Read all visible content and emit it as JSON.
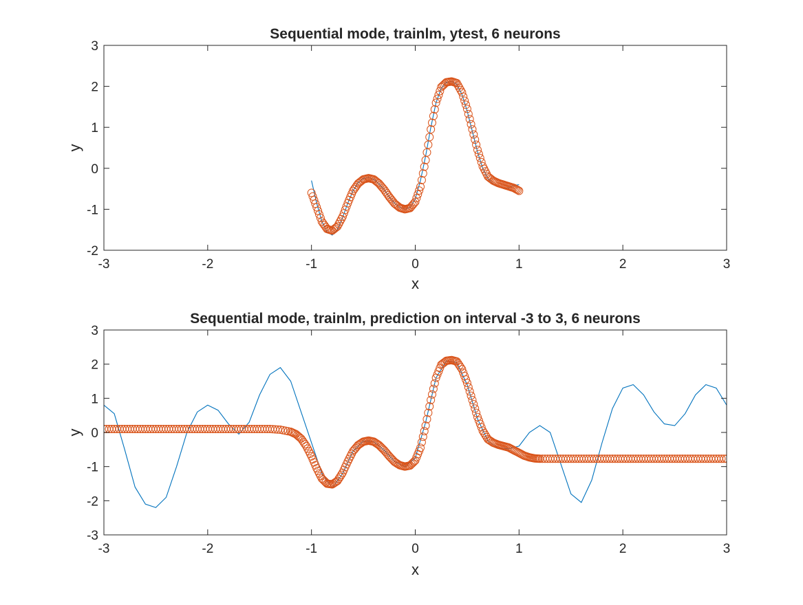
{
  "colors": {
    "target_line": "#0072BD",
    "prediction_marker": "#D95319",
    "axes": "#262626",
    "background": "#ffffff"
  },
  "chart_data": [
    {
      "type": "line",
      "title": "Sequential mode, trainlm, ytest, 6 neurons",
      "xlabel": "x",
      "ylabel": "y",
      "xlim": [
        -3,
        3
      ],
      "ylim": [
        -2,
        3
      ],
      "xticks": [
        -3,
        -2,
        -1,
        0,
        1,
        2,
        3
      ],
      "yticks": [
        -2,
        -1,
        0,
        1,
        2,
        3
      ],
      "xtick_labels": [
        "-3",
        "-2",
        "-1",
        "0",
        "1",
        "2",
        "3"
      ],
      "ytick_labels": [
        "-2",
        "-1",
        "0",
        "1",
        "2",
        "3"
      ],
      "grid": false,
      "box": true,
      "series": [
        {
          "kind": "line",
          "color": "#0072BD",
          "x": [
            -1,
            -0.95,
            -0.9,
            -0.85,
            -0.8,
            -0.75,
            -0.7,
            -0.65,
            -0.6,
            -0.55,
            -0.5,
            -0.45,
            -0.4,
            -0.35,
            -0.3,
            -0.25,
            -0.2,
            -0.15,
            -0.1,
            -0.05,
            0,
            0.05,
            0.1,
            0.15,
            0.2,
            0.25,
            0.3,
            0.35,
            0.4,
            0.45,
            0.5,
            0.55,
            0.6,
            0.65,
            0.7,
            0.75,
            0.8,
            0.85,
            0.9,
            0.95,
            1
          ],
          "y": [
            -0.3,
            -0.85,
            -1.3,
            -1.55,
            -1.63,
            -1.5,
            -1.2,
            -0.85,
            -0.55,
            -0.35,
            -0.25,
            -0.22,
            -0.27,
            -0.38,
            -0.52,
            -0.7,
            -0.85,
            -0.95,
            -1.0,
            -0.95,
            -0.75,
            -0.3,
            0.3,
            1.0,
            1.6,
            1.95,
            2.1,
            2.12,
            2.05,
            1.8,
            1.4,
            0.9,
            0.4,
            0.0,
            -0.25,
            -0.38,
            -0.45,
            -0.48,
            -0.48,
            -0.42,
            -0.4
          ]
        },
        {
          "kind": "marker",
          "marker": "circle",
          "color": "#D95319",
          "x": [
            -1,
            -0.95,
            -0.9,
            -0.85,
            -0.8,
            -0.75,
            -0.7,
            -0.65,
            -0.6,
            -0.55,
            -0.5,
            -0.45,
            -0.4,
            -0.35,
            -0.3,
            -0.25,
            -0.2,
            -0.15,
            -0.1,
            -0.05,
            0,
            0.05,
            0.1,
            0.15,
            0.2,
            0.25,
            0.3,
            0.35,
            0.4,
            0.45,
            0.5,
            0.55,
            0.6,
            0.65,
            0.7,
            0.75,
            0.8,
            0.85,
            0.9,
            0.95,
            1
          ],
          "y": [
            -0.6,
            -0.95,
            -1.3,
            -1.48,
            -1.52,
            -1.42,
            -1.18,
            -0.85,
            -0.55,
            -0.37,
            -0.27,
            -0.24,
            -0.27,
            -0.37,
            -0.52,
            -0.7,
            -0.86,
            -0.96,
            -1.0,
            -0.97,
            -0.82,
            -0.45,
            0.2,
            0.95,
            1.6,
            1.98,
            2.1,
            2.12,
            2.08,
            1.85,
            1.45,
            0.95,
            0.45,
            0.05,
            -0.2,
            -0.3,
            -0.36,
            -0.4,
            -0.44,
            -0.48,
            -0.55
          ]
        }
      ]
    },
    {
      "type": "line",
      "title": "Sequential mode, trainlm, prediction on interval -3 to 3, 6 neurons",
      "xlabel": "x",
      "ylabel": "y",
      "xlim": [
        -3,
        3
      ],
      "ylim": [
        -3,
        3
      ],
      "xticks": [
        -3,
        -2,
        -1,
        0,
        1,
        2,
        3
      ],
      "yticks": [
        -3,
        -2,
        -1,
        0,
        1,
        2,
        3
      ],
      "xtick_labels": [
        "-3",
        "-2",
        "-1",
        "0",
        "1",
        "2",
        "3"
      ],
      "ytick_labels": [
        "-3",
        "-2",
        "-1",
        "0",
        "1",
        "2",
        "3"
      ],
      "grid": false,
      "box": true,
      "series": [
        {
          "kind": "line",
          "color": "#0072BD",
          "x": [
            -3,
            -2.9,
            -2.8,
            -2.7,
            -2.6,
            -2.5,
            -2.4,
            -2.3,
            -2.2,
            -2.1,
            -2,
            -1.9,
            -1.8,
            -1.7,
            -1.6,
            -1.5,
            -1.4,
            -1.3,
            -1.2,
            -1.1,
            -1,
            -0.9,
            -0.8,
            -0.7,
            -0.6,
            -0.5,
            -0.4,
            -0.3,
            -0.2,
            -0.1,
            0,
            0.1,
            0.2,
            0.3,
            0.4,
            0.5,
            0.6,
            0.7,
            0.8,
            0.9,
            1,
            1.1,
            1.2,
            1.3,
            1.4,
            1.5,
            1.6,
            1.7,
            1.8,
            1.9,
            2,
            2.1,
            2.2,
            2.3,
            2.4,
            2.5,
            2.6,
            2.7,
            2.8,
            2.9,
            3
          ],
          "y": [
            0.8,
            0.55,
            -0.5,
            -1.6,
            -2.1,
            -2.2,
            -1.9,
            -1.0,
            0.0,
            0.6,
            0.8,
            0.65,
            0.25,
            -0.05,
            0.3,
            1.1,
            1.7,
            1.9,
            1.5,
            0.6,
            -0.3,
            -1.2,
            -1.63,
            -1.2,
            -0.55,
            -0.25,
            -0.27,
            -0.52,
            -0.85,
            -1.0,
            -0.75,
            0.3,
            1.6,
            2.1,
            2.05,
            1.4,
            0.4,
            -0.25,
            -0.45,
            -0.48,
            -0.4,
            0.0,
            0.2,
            0.0,
            -0.9,
            -1.8,
            -2.05,
            -1.4,
            -0.3,
            0.7,
            1.3,
            1.4,
            1.1,
            0.6,
            0.25,
            0.2,
            0.55,
            1.1,
            1.4,
            1.3,
            0.8
          ]
        },
        {
          "kind": "marker",
          "marker": "circle",
          "color": "#D95319",
          "x": [
            -3,
            -2.9,
            -2.8,
            -2.7,
            -2.6,
            -2.5,
            -2.4,
            -2.3,
            -2.2,
            -2.1,
            -2,
            -1.9,
            -1.8,
            -1.7,
            -1.6,
            -1.5,
            -1.4,
            -1.3,
            -1.2,
            -1.15,
            -1.1,
            -1.05,
            -1,
            -0.95,
            -0.9,
            -0.85,
            -0.8,
            -0.75,
            -0.7,
            -0.65,
            -0.6,
            -0.55,
            -0.5,
            -0.45,
            -0.4,
            -0.35,
            -0.3,
            -0.25,
            -0.2,
            -0.15,
            -0.1,
            -0.05,
            0,
            0.05,
            0.1,
            0.15,
            0.2,
            0.25,
            0.3,
            0.35,
            0.4,
            0.45,
            0.5,
            0.55,
            0.6,
            0.65,
            0.7,
            0.75,
            0.8,
            0.85,
            0.9,
            0.95,
            1,
            1.05,
            1.1,
            1.15,
            1.2,
            1.3,
            1.4,
            1.5,
            1.6,
            1.7,
            1.8,
            1.9,
            2,
            2.1,
            2.2,
            2.3,
            2.4,
            2.5,
            2.6,
            2.7,
            2.8,
            2.9,
            3
          ],
          "y": [
            0.1,
            0.1,
            0.1,
            0.1,
            0.1,
            0.1,
            0.1,
            0.1,
            0.1,
            0.1,
            0.1,
            0.1,
            0.1,
            0.1,
            0.1,
            0.1,
            0.1,
            0.08,
            0.02,
            -0.05,
            -0.18,
            -0.4,
            -0.7,
            -1.05,
            -1.35,
            -1.5,
            -1.52,
            -1.42,
            -1.18,
            -0.85,
            -0.55,
            -0.37,
            -0.27,
            -0.24,
            -0.27,
            -0.37,
            -0.52,
            -0.7,
            -0.86,
            -0.96,
            -1.0,
            -0.97,
            -0.82,
            -0.45,
            0.2,
            0.95,
            1.6,
            1.98,
            2.1,
            2.12,
            2.08,
            1.85,
            1.45,
            0.95,
            0.45,
            0.05,
            -0.2,
            -0.3,
            -0.36,
            -0.4,
            -0.44,
            -0.52,
            -0.6,
            -0.68,
            -0.73,
            -0.76,
            -0.77,
            -0.77,
            -0.77,
            -0.77,
            -0.77,
            -0.77,
            -0.77,
            -0.77,
            -0.77,
            -0.77,
            -0.77,
            -0.77,
            -0.77,
            -0.77,
            -0.77,
            -0.77,
            -0.77,
            -0.77,
            -0.77
          ]
        }
      ]
    }
  ]
}
